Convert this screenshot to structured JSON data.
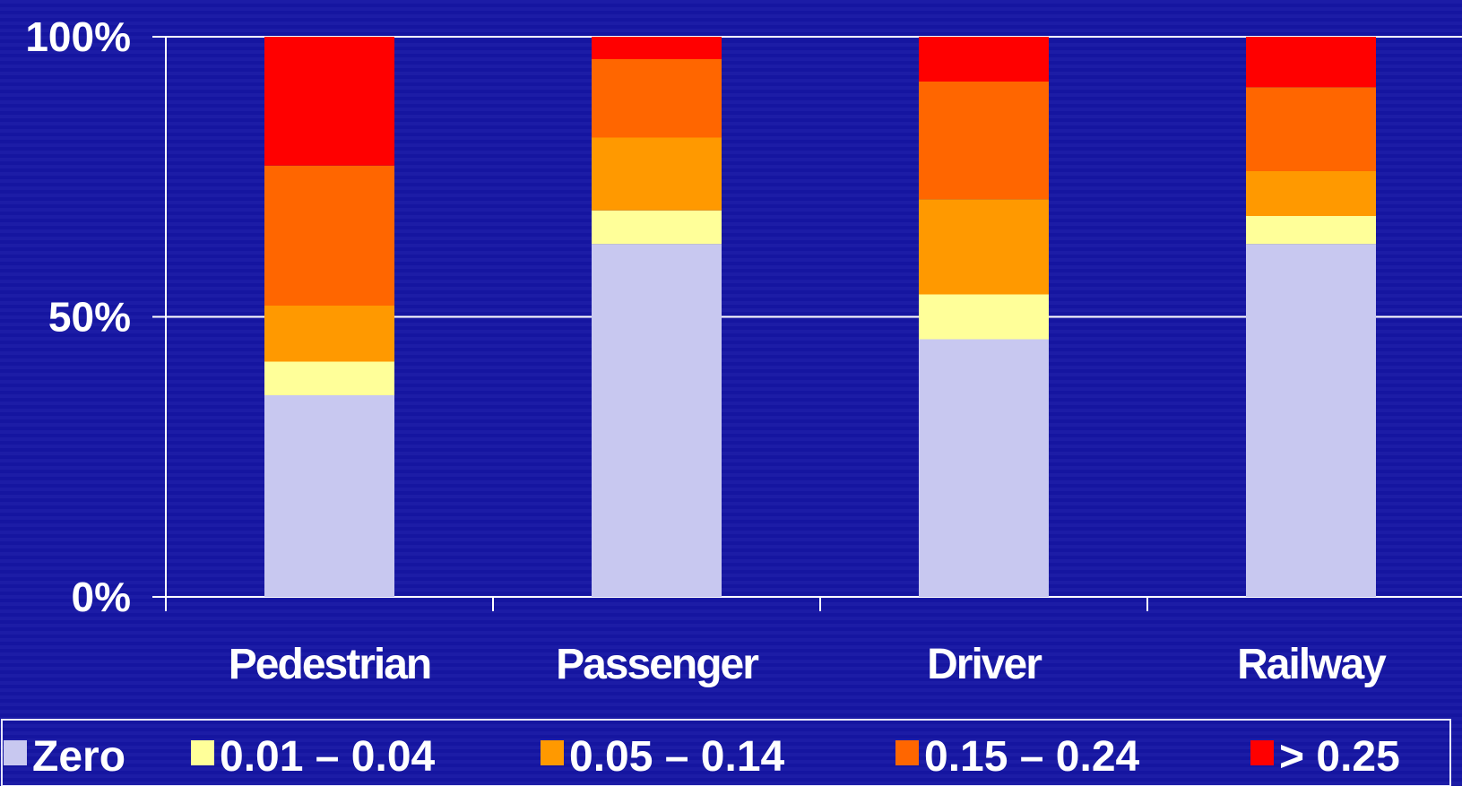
{
  "chart_data": {
    "type": "bar",
    "stacked": true,
    "title": "",
    "xlabel": "",
    "ylabel": "",
    "ylim": [
      0,
      100
    ],
    "y_ticks": [
      "0%",
      "50%",
      "100%"
    ],
    "grid": true,
    "legend_position": "bottom",
    "categories": [
      "Pedestrian",
      "Passenger",
      "Driver",
      "Railway"
    ],
    "series": [
      {
        "name": "Zero",
        "color": "#c8c8f0",
        "values": [
          36,
          63,
          46,
          63
        ]
      },
      {
        "name": "0.01 – 0.04",
        "color": "#ffff99",
        "values": [
          6,
          6,
          8,
          5
        ]
      },
      {
        "name": "0.05 – 0.14",
        "color": "#ff9900",
        "values": [
          10,
          13,
          17,
          8
        ]
      },
      {
        "name": "0.15 – 0.24",
        "color": "#ff6600",
        "values": [
          25,
          14,
          21,
          15
        ]
      },
      {
        "name": "> 0.25",
        "color": "#ff0000",
        "values": [
          23,
          4,
          8,
          9
        ]
      }
    ]
  }
}
